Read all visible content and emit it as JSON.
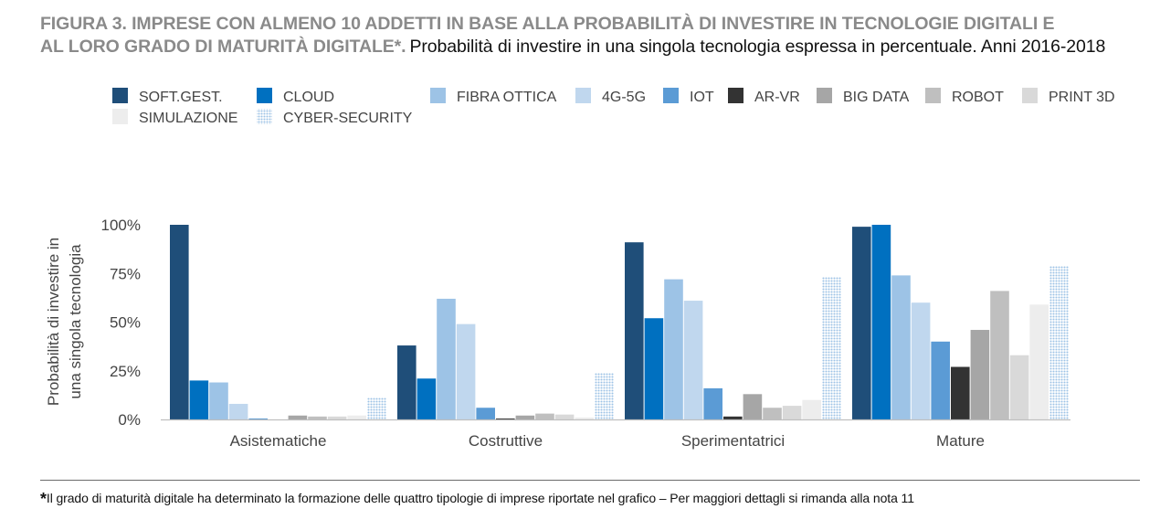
{
  "header": {
    "title_line1": "FIGURA 3. IMPRESE CON ALMENO 10 ADDETTI IN BASE ALLA PROBABILITÀ DI INVESTIRE IN TECNOLOGIE DIGITALI E",
    "title_line2": "AL LORO GRADO DI MATURITÀ DIGITALE*.",
    "subtitle": "Probabilità di investire in una singola tecnologia espressa in percentuale. Anni 2016-2018"
  },
  "footnote": {
    "star": "*",
    "text": "Il grado di maturità digitale ha determinato la formazione delle quattro tipologie di imprese riportate nel grafico – Per maggiori dettagli si rimanda alla nota 11"
  },
  "chart_data": {
    "type": "bar",
    "categories": [
      "Asistematiche",
      "Costruttive",
      "Sperimentatrici",
      "Mature"
    ],
    "ylabel_lines": [
      "Probabilità di investire in",
      "una singola tecnologia"
    ],
    "ylim": [
      0,
      100
    ],
    "yticks": [
      0,
      25,
      50,
      75,
      100
    ],
    "ytick_labels": [
      "0%",
      "25%",
      "50%",
      "75%",
      "100%"
    ],
    "grid": false,
    "legend_position": "top",
    "series": [
      {
        "name": "SOFT.GEST.",
        "color": "#1f4e79",
        "pattern": "solid",
        "values": [
          100,
          38,
          91,
          99
        ]
      },
      {
        "name": "CLOUD",
        "color": "#0070c0",
        "pattern": "solid",
        "values": [
          20,
          21,
          52,
          100
        ]
      },
      {
        "name": "FIBRA OTTICA",
        "color": "#9dc3e6",
        "pattern": "solid",
        "values": [
          19,
          62,
          72,
          74
        ]
      },
      {
        "name": "4G-5G",
        "color": "#c0d7ee",
        "pattern": "solid",
        "values": [
          8,
          49,
          61,
          60
        ]
      },
      {
        "name": "IOT",
        "color": "#5b9bd5",
        "pattern": "solid",
        "values": [
          0.5,
          6,
          16,
          40
        ]
      },
      {
        "name": "AR-VR",
        "color": "#333333",
        "pattern": "solid",
        "values": [
          0,
          0.5,
          1.5,
          27
        ]
      },
      {
        "name": "BIG DATA",
        "color": "#a6a6a6",
        "pattern": "solid",
        "values": [
          2,
          2,
          13,
          46
        ]
      },
      {
        "name": "ROBOT",
        "color": "#bfbfbf",
        "pattern": "solid",
        "values": [
          1.5,
          3,
          6,
          66
        ]
      },
      {
        "name": "PRINT 3D",
        "color": "#d9d9d9",
        "pattern": "solid",
        "values": [
          1.5,
          2.5,
          7,
          33
        ]
      },
      {
        "name": "SIMULAZIONE",
        "color": "#ededed",
        "pattern": "solid",
        "values": [
          2,
          1,
          10,
          59
        ]
      },
      {
        "name": "CYBER-SECURITY",
        "color": "#9dc3e6",
        "pattern": "dotted",
        "values": [
          11,
          24,
          73,
          79
        ]
      }
    ]
  }
}
